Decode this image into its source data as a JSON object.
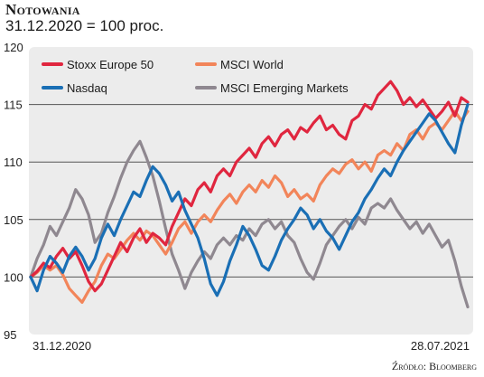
{
  "header": {
    "title": "Notowania",
    "subtitle": "31.12.2020 = 100 proc."
  },
  "source": "Źródło: Bloomberg",
  "chart_data": {
    "type": "line",
    "ylim": [
      95,
      120
    ],
    "yticks": [
      95,
      100,
      105,
      110,
      115,
      120
    ],
    "x_start_label": "31.12.2020",
    "x_end_label": "28.07.2021",
    "grid": true,
    "legend_placement": "top",
    "series": [
      {
        "name": "Stoxx Europe 50",
        "color": "#e0263f",
        "values": [
          100,
          100.5,
          101.2,
          100.8,
          101.8,
          102.5,
          101.6,
          102.2,
          101.0,
          99.6,
          98.8,
          99.4,
          100.6,
          101.8,
          103.0,
          102.2,
          103.4,
          104.2,
          103.0,
          103.8,
          103.4,
          102.8,
          104.4,
          105.6,
          106.8,
          106.2,
          107.6,
          108.2,
          107.4,
          108.8,
          109.4,
          108.8,
          110.0,
          110.6,
          111.2,
          110.4,
          111.6,
          112.2,
          111.4,
          112.4,
          112.8,
          112.0,
          113.0,
          112.6,
          113.4,
          114.0,
          112.8,
          113.2,
          112.4,
          112.0,
          113.6,
          114.0,
          115.0,
          114.6,
          115.8,
          116.4,
          117.0,
          116.2,
          115.0,
          115.6,
          114.8,
          115.4,
          114.6,
          113.8,
          114.4,
          115.2,
          114.0,
          115.6,
          115.2
        ]
      },
      {
        "name": "MSCI World",
        "color": "#f2855a",
        "values": [
          100,
          100.4,
          101.0,
          100.6,
          101.0,
          100.2,
          99.0,
          98.4,
          97.8,
          98.8,
          99.6,
          101.0,
          102.0,
          101.6,
          102.4,
          103.2,
          103.8,
          103.2,
          104.0,
          103.6,
          102.8,
          102.0,
          103.0,
          104.2,
          104.8,
          103.8,
          104.8,
          105.4,
          104.8,
          105.8,
          106.6,
          107.2,
          106.4,
          107.4,
          108.0,
          107.4,
          108.4,
          107.8,
          108.8,
          108.2,
          107.0,
          107.6,
          106.8,
          107.2,
          106.6,
          108.0,
          108.8,
          109.4,
          109.0,
          109.8,
          110.2,
          109.4,
          110.0,
          109.2,
          110.6,
          111.0,
          110.6,
          111.6,
          111.0,
          112.4,
          112.8,
          112.0,
          113.0,
          113.4,
          112.8,
          113.6,
          114.4,
          113.6,
          114.4
        ]
      },
      {
        "name": "Nasdaq",
        "color": "#1a6fb5",
        "values": [
          100,
          98.8,
          100.6,
          101.8,
          101.2,
          100.4,
          101.8,
          102.6,
          101.8,
          100.6,
          101.6,
          103.4,
          104.6,
          103.6,
          105.0,
          106.2,
          107.4,
          107.0,
          108.4,
          109.6,
          109.0,
          108.0,
          106.6,
          107.4,
          105.8,
          104.6,
          103.4,
          101.6,
          99.4,
          98.4,
          99.6,
          101.4,
          102.8,
          104.4,
          103.6,
          102.4,
          101.0,
          100.6,
          101.8,
          103.2,
          104.2,
          105.0,
          106.0,
          105.4,
          104.2,
          105.0,
          104.0,
          103.4,
          102.4,
          103.6,
          104.8,
          105.6,
          106.8,
          107.6,
          108.6,
          109.4,
          108.8,
          110.0,
          111.0,
          111.8,
          112.6,
          113.4,
          114.2,
          113.6,
          112.6,
          111.6,
          110.8,
          113.2,
          115.0
        ]
      },
      {
        "name": "MSCI Emerging Markets",
        "color": "#8f8890",
        "values": [
          100,
          101.6,
          102.8,
          104.4,
          103.6,
          104.8,
          106.0,
          107.6,
          106.8,
          105.4,
          103.0,
          103.8,
          105.6,
          107.0,
          108.6,
          110.0,
          111.0,
          111.8,
          110.4,
          108.8,
          106.6,
          104.2,
          102.0,
          100.6,
          99.0,
          100.4,
          101.4,
          102.2,
          101.6,
          102.8,
          103.4,
          102.8,
          103.6,
          103.2,
          104.2,
          103.6,
          104.6,
          105.0,
          104.2,
          104.8,
          103.6,
          103.0,
          101.6,
          100.4,
          99.8,
          101.2,
          102.8,
          103.6,
          104.4,
          105.0,
          104.2,
          105.2,
          104.6,
          106.0,
          106.4,
          106.0,
          106.8,
          105.8,
          105.0,
          104.2,
          104.8,
          103.8,
          104.6,
          103.6,
          102.6,
          103.2,
          101.4,
          99.2,
          97.4
        ]
      }
    ]
  }
}
